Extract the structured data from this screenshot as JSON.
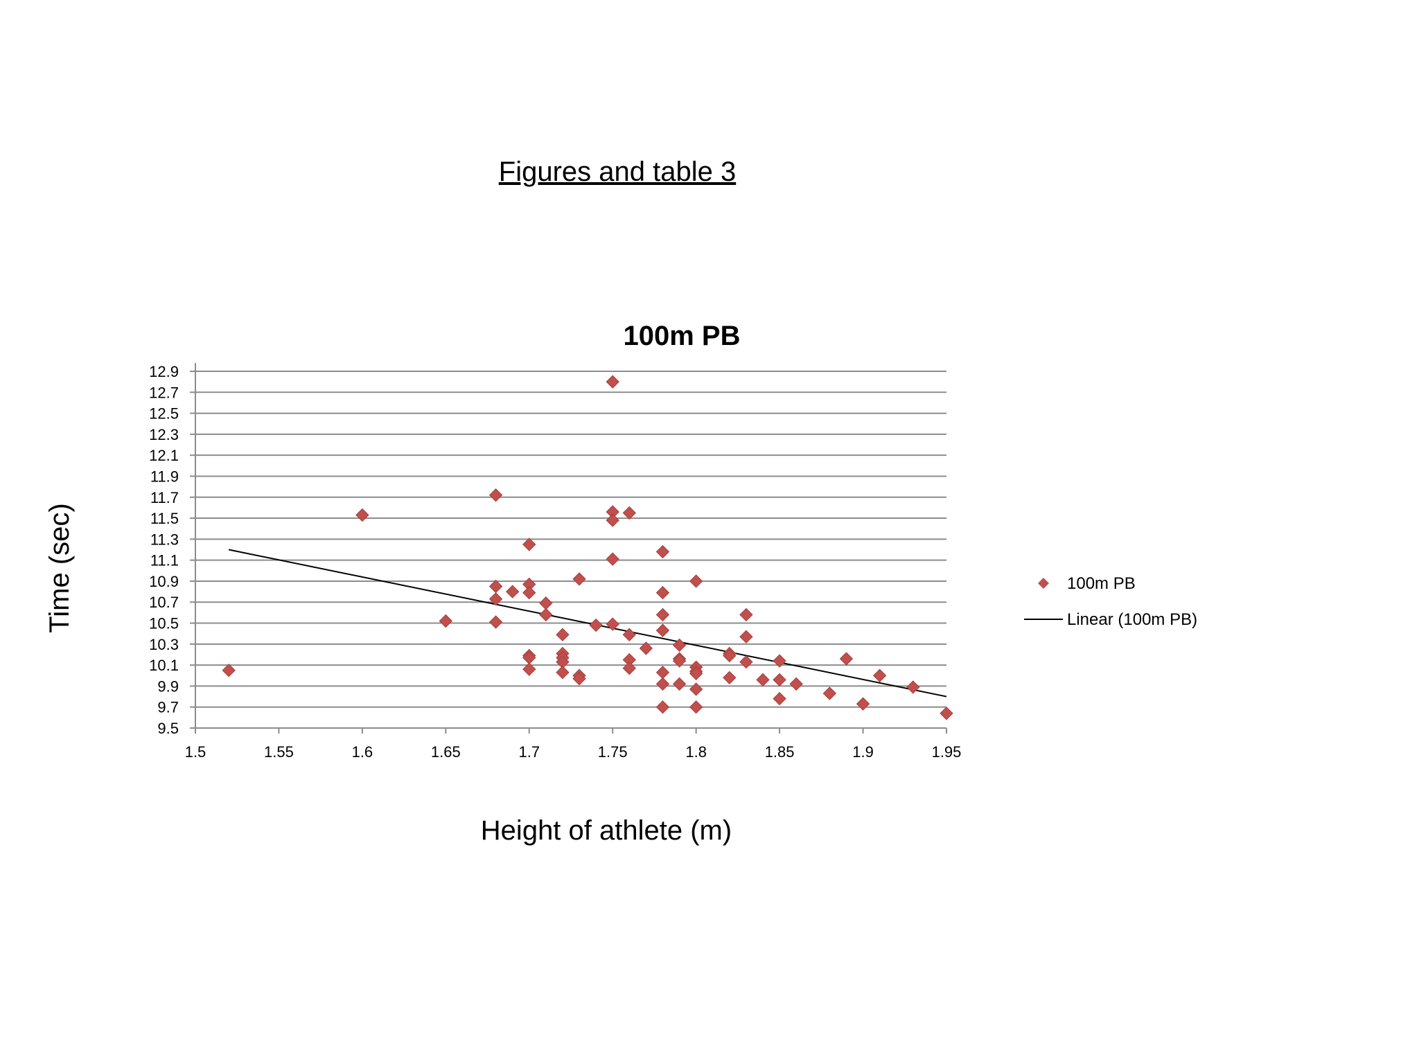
{
  "page": {
    "heading": "Figures and table 3"
  },
  "chart_data": {
    "type": "scatter",
    "title": "100m PB",
    "xlabel": "Height of athlete (m)",
    "ylabel": "Time (sec)",
    "xlim": [
      1.5,
      1.95
    ],
    "ylim": [
      9.5,
      12.9
    ],
    "x_ticks": [
      "1.5",
      "1.55",
      "1.6",
      "1.65",
      "1.7",
      "1.75",
      "1.8",
      "1.85",
      "1.9",
      "1.95"
    ],
    "y_ticks": [
      "9.5",
      "9.7",
      "9.9",
      "10.1",
      "10.3",
      "10.5",
      "10.7",
      "10.9",
      "11.1",
      "11.3",
      "11.5",
      "11.7",
      "11.9",
      "12.1",
      "12.3",
      "12.5",
      "12.7",
      "12.9"
    ],
    "grid": "horizontal",
    "legend_position": "right",
    "series": [
      {
        "name": "100m PB",
        "marker": "diamond",
        "color": "#c0504d",
        "points": [
          [
            1.52,
            10.05
          ],
          [
            1.6,
            11.53
          ],
          [
            1.65,
            10.52
          ],
          [
            1.68,
            11.72
          ],
          [
            1.68,
            10.85
          ],
          [
            1.68,
            10.73
          ],
          [
            1.68,
            10.51
          ],
          [
            1.69,
            10.8
          ],
          [
            1.7,
            11.25
          ],
          [
            1.7,
            10.87
          ],
          [
            1.7,
            10.79
          ],
          [
            1.7,
            10.19
          ],
          [
            1.7,
            10.17
          ],
          [
            1.7,
            10.06
          ],
          [
            1.71,
            10.69
          ],
          [
            1.71,
            10.58
          ],
          [
            1.72,
            10.39
          ],
          [
            1.72,
            10.21
          ],
          [
            1.72,
            10.17
          ],
          [
            1.72,
            10.13
          ],
          [
            1.72,
            10.03
          ],
          [
            1.73,
            10.92
          ],
          [
            1.73,
            10.0
          ],
          [
            1.73,
            9.97
          ],
          [
            1.74,
            10.48
          ],
          [
            1.75,
            12.8
          ],
          [
            1.75,
            11.56
          ],
          [
            1.75,
            11.48
          ],
          [
            1.75,
            11.11
          ],
          [
            1.75,
            10.49
          ],
          [
            1.76,
            11.55
          ],
          [
            1.76,
            10.39
          ],
          [
            1.76,
            10.15
          ],
          [
            1.76,
            10.07
          ],
          [
            1.77,
            10.26
          ],
          [
            1.78,
            11.18
          ],
          [
            1.78,
            10.79
          ],
          [
            1.78,
            10.58
          ],
          [
            1.78,
            10.43
          ],
          [
            1.78,
            10.03
          ],
          [
            1.78,
            9.92
          ],
          [
            1.78,
            9.7
          ],
          [
            1.79,
            10.29
          ],
          [
            1.79,
            10.16
          ],
          [
            1.79,
            10.14
          ],
          [
            1.79,
            9.92
          ],
          [
            1.8,
            10.9
          ],
          [
            1.8,
            10.08
          ],
          [
            1.8,
            10.04
          ],
          [
            1.8,
            10.02
          ],
          [
            1.8,
            9.87
          ],
          [
            1.8,
            9.7
          ],
          [
            1.82,
            10.21
          ],
          [
            1.82,
            10.19
          ],
          [
            1.82,
            9.98
          ],
          [
            1.83,
            10.58
          ],
          [
            1.83,
            10.37
          ],
          [
            1.83,
            10.13
          ],
          [
            1.84,
            9.96
          ],
          [
            1.85,
            10.14
          ],
          [
            1.85,
            9.96
          ],
          [
            1.85,
            9.78
          ],
          [
            1.86,
            9.92
          ],
          [
            1.88,
            9.83
          ],
          [
            1.89,
            10.16
          ],
          [
            1.9,
            9.73
          ],
          [
            1.91,
            10.0
          ],
          [
            1.93,
            9.89
          ],
          [
            1.95,
            9.64
          ]
        ]
      },
      {
        "name": "Linear (100m PB)",
        "type": "trendline",
        "color": "#000000",
        "points": [
          [
            1.52,
            11.2
          ],
          [
            1.95,
            9.8
          ]
        ]
      }
    ]
  }
}
